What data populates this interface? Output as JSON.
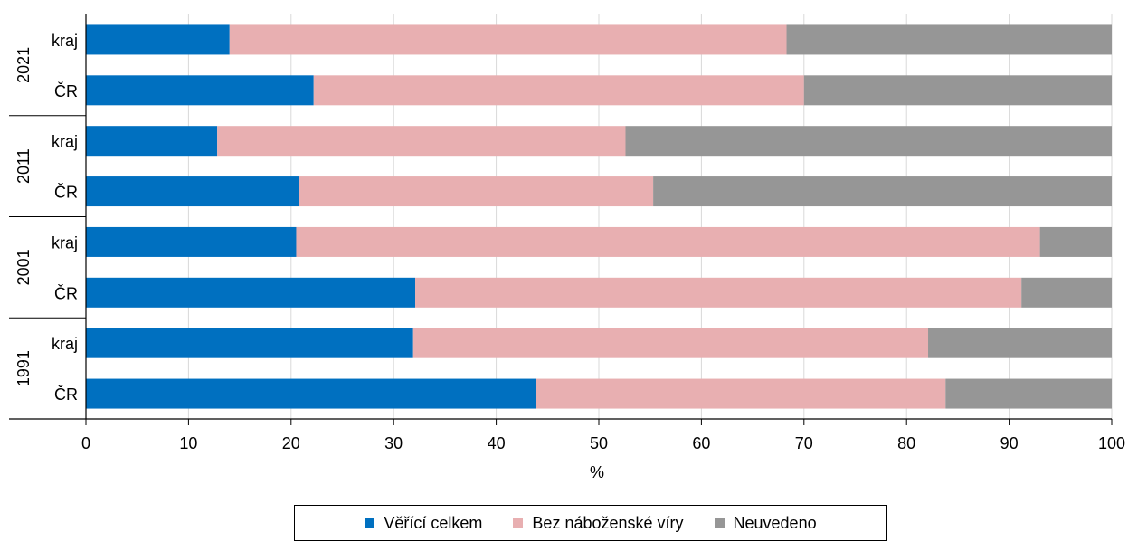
{
  "chart_data": {
    "type": "bar",
    "orientation": "horizontal",
    "stacked": true,
    "xlabel": "%",
    "xlim": [
      0,
      100
    ],
    "xticks": [
      "0",
      "10",
      "20",
      "30",
      "40",
      "50",
      "60",
      "70",
      "80",
      "90",
      "100"
    ],
    "grid": true,
    "legend_position": "bottom",
    "groups": [
      {
        "label": "2021",
        "categories": [
          "kraj",
          "ČR"
        ]
      },
      {
        "label": "2011",
        "categories": [
          "kraj",
          "ČR"
        ]
      },
      {
        "label": "2001",
        "categories": [
          "kraj",
          "ČR"
        ]
      },
      {
        "label": "1991",
        "categories": [
          "kraj",
          "ČR"
        ]
      }
    ],
    "series": [
      {
        "name": "Věřící celkem",
        "color": "#0070c0",
        "values": [
          14.0,
          22.2,
          12.8,
          20.8,
          20.5,
          32.1,
          31.9,
          43.9
        ]
      },
      {
        "name": "Bez náboženské víry",
        "color": "#e8afb1",
        "values": [
          54.3,
          47.8,
          39.8,
          34.5,
          72.5,
          59.1,
          50.2,
          39.9
        ]
      },
      {
        "name": "Neuvedeno",
        "color": "#969696",
        "values": [
          31.7,
          30.0,
          47.4,
          44.7,
          7.0,
          8.8,
          17.9,
          16.2
        ]
      }
    ]
  }
}
